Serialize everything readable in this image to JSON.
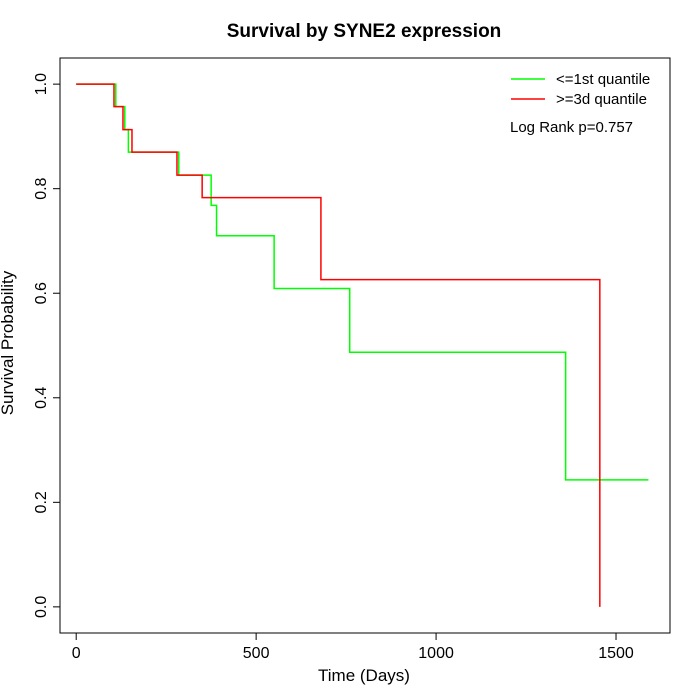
{
  "chart_data": {
    "type": "line",
    "title": "Survival by SYNE2 expression",
    "xlabel": "Time (Days)",
    "ylabel": "Survival Probability",
    "xlim": [
      -45,
      1650
    ],
    "ylim": [
      -0.05,
      1.05
    ],
    "x_ticks": [
      0,
      500,
      1000,
      1500
    ],
    "y_ticks": [
      0.0,
      0.2,
      0.4,
      0.6,
      0.8,
      1.0
    ],
    "x_tick_labels": [
      "0",
      "500",
      "1000",
      "1500"
    ],
    "y_tick_labels": [
      "0.0",
      "0.2",
      "0.4",
      "0.6",
      "0.8",
      "1.0"
    ],
    "grid": false,
    "legend_position": "top-right",
    "annotation": "Log Rank p=0.757",
    "series": [
      {
        "name": "<=1st quantile",
        "color": "#00ff00",
        "steps": [
          [
            0,
            1.0
          ],
          [
            110,
            0.957
          ],
          [
            135,
            0.913
          ],
          [
            145,
            0.87
          ],
          [
            285,
            0.826
          ],
          [
            375,
            0.768
          ],
          [
            390,
            0.71
          ],
          [
            550,
            0.609
          ],
          [
            760,
            0.487
          ],
          [
            1360,
            0.243
          ],
          [
            1590,
            0.243
          ]
        ]
      },
      {
        "name": ">=3d quantile",
        "color": "#ff0000",
        "steps": [
          [
            0,
            1.0
          ],
          [
            105,
            0.957
          ],
          [
            130,
            0.913
          ],
          [
            155,
            0.87
          ],
          [
            280,
            0.826
          ],
          [
            350,
            0.783
          ],
          [
            680,
            0.626
          ],
          [
            1455,
            0.0
          ]
        ]
      }
    ]
  }
}
